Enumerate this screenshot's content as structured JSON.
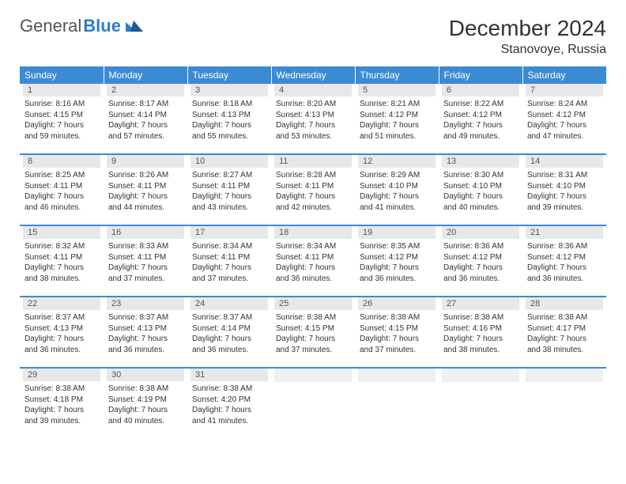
{
  "logo": {
    "text1": "General",
    "text2": "Blue"
  },
  "title": "December 2024",
  "location": "Stanovoye, Russia",
  "header_bg": "#3b8bd4",
  "day_bg": "#e8e8e8",
  "weekdays": [
    "Sunday",
    "Monday",
    "Tuesday",
    "Wednesday",
    "Thursday",
    "Friday",
    "Saturday"
  ],
  "weeks": [
    [
      {
        "n": "1",
        "sr": "8:16 AM",
        "ss": "4:15 PM",
        "dl": "7 hours and 59 minutes."
      },
      {
        "n": "2",
        "sr": "8:17 AM",
        "ss": "4:14 PM",
        "dl": "7 hours and 57 minutes."
      },
      {
        "n": "3",
        "sr": "8:18 AM",
        "ss": "4:13 PM",
        "dl": "7 hours and 55 minutes."
      },
      {
        "n": "4",
        "sr": "8:20 AM",
        "ss": "4:13 PM",
        "dl": "7 hours and 53 minutes."
      },
      {
        "n": "5",
        "sr": "8:21 AM",
        "ss": "4:12 PM",
        "dl": "7 hours and 51 minutes."
      },
      {
        "n": "6",
        "sr": "8:22 AM",
        "ss": "4:12 PM",
        "dl": "7 hours and 49 minutes."
      },
      {
        "n": "7",
        "sr": "8:24 AM",
        "ss": "4:12 PM",
        "dl": "7 hours and 47 minutes."
      }
    ],
    [
      {
        "n": "8",
        "sr": "8:25 AM",
        "ss": "4:11 PM",
        "dl": "7 hours and 46 minutes."
      },
      {
        "n": "9",
        "sr": "8:26 AM",
        "ss": "4:11 PM",
        "dl": "7 hours and 44 minutes."
      },
      {
        "n": "10",
        "sr": "8:27 AM",
        "ss": "4:11 PM",
        "dl": "7 hours and 43 minutes."
      },
      {
        "n": "11",
        "sr": "8:28 AM",
        "ss": "4:11 PM",
        "dl": "7 hours and 42 minutes."
      },
      {
        "n": "12",
        "sr": "8:29 AM",
        "ss": "4:10 PM",
        "dl": "7 hours and 41 minutes."
      },
      {
        "n": "13",
        "sr": "8:30 AM",
        "ss": "4:10 PM",
        "dl": "7 hours and 40 minutes."
      },
      {
        "n": "14",
        "sr": "8:31 AM",
        "ss": "4:10 PM",
        "dl": "7 hours and 39 minutes."
      }
    ],
    [
      {
        "n": "15",
        "sr": "8:32 AM",
        "ss": "4:11 PM",
        "dl": "7 hours and 38 minutes."
      },
      {
        "n": "16",
        "sr": "8:33 AM",
        "ss": "4:11 PM",
        "dl": "7 hours and 37 minutes."
      },
      {
        "n": "17",
        "sr": "8:34 AM",
        "ss": "4:11 PM",
        "dl": "7 hours and 37 minutes."
      },
      {
        "n": "18",
        "sr": "8:34 AM",
        "ss": "4:11 PM",
        "dl": "7 hours and 36 minutes."
      },
      {
        "n": "19",
        "sr": "8:35 AM",
        "ss": "4:12 PM",
        "dl": "7 hours and 36 minutes."
      },
      {
        "n": "20",
        "sr": "8:36 AM",
        "ss": "4:12 PM",
        "dl": "7 hours and 36 minutes."
      },
      {
        "n": "21",
        "sr": "8:36 AM",
        "ss": "4:12 PM",
        "dl": "7 hours and 36 minutes."
      }
    ],
    [
      {
        "n": "22",
        "sr": "8:37 AM",
        "ss": "4:13 PM",
        "dl": "7 hours and 36 minutes."
      },
      {
        "n": "23",
        "sr": "8:37 AM",
        "ss": "4:13 PM",
        "dl": "7 hours and 36 minutes."
      },
      {
        "n": "24",
        "sr": "8:37 AM",
        "ss": "4:14 PM",
        "dl": "7 hours and 36 minutes."
      },
      {
        "n": "25",
        "sr": "8:38 AM",
        "ss": "4:15 PM",
        "dl": "7 hours and 37 minutes."
      },
      {
        "n": "26",
        "sr": "8:38 AM",
        "ss": "4:15 PM",
        "dl": "7 hours and 37 minutes."
      },
      {
        "n": "27",
        "sr": "8:38 AM",
        "ss": "4:16 PM",
        "dl": "7 hours and 38 minutes."
      },
      {
        "n": "28",
        "sr": "8:38 AM",
        "ss": "4:17 PM",
        "dl": "7 hours and 38 minutes."
      }
    ],
    [
      {
        "n": "29",
        "sr": "8:38 AM",
        "ss": "4:18 PM",
        "dl": "7 hours and 39 minutes."
      },
      {
        "n": "30",
        "sr": "8:38 AM",
        "ss": "4:19 PM",
        "dl": "7 hours and 40 minutes."
      },
      {
        "n": "31",
        "sr": "8:38 AM",
        "ss": "4:20 PM",
        "dl": "7 hours and 41 minutes."
      },
      null,
      null,
      null,
      null
    ]
  ]
}
